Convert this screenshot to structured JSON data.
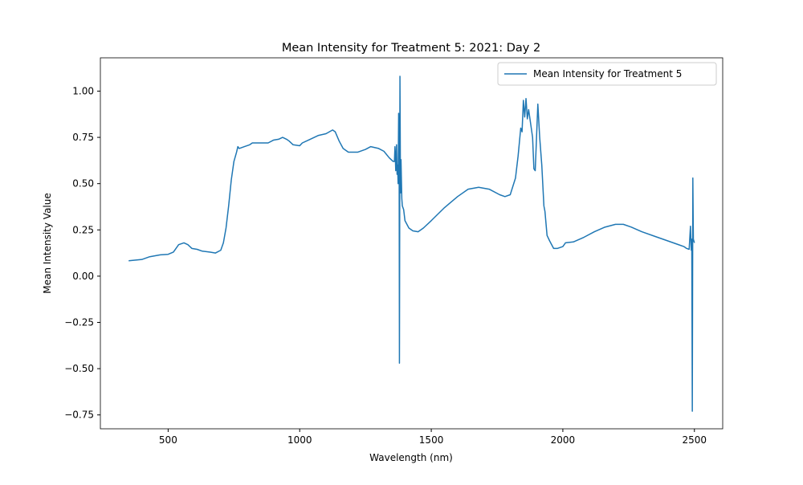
{
  "chart_data": {
    "type": "line",
    "title": "Mean Intensity for Treatment 5: 2021: Day 2",
    "x_label": "Wavelength (nm)",
    "y_label": "Mean Intensity Value",
    "legend": "upper right",
    "grid": false,
    "xlim": [
      242.5,
      2607.5
    ],
    "xticks": [
      500,
      1000,
      1500,
      2000,
      2500
    ],
    "ylim": [
      -0.825,
      1.18
    ],
    "yticks": [
      {
        "value": 1,
        "label": "1.00"
      },
      0.75,
      {
        "value": 0.5,
        "label": "0.50"
      },
      0.25,
      {
        "value": 0,
        "label": "0.00"
      },
      {
        "value": -0.25,
        "label": "−0.25"
      },
      {
        "value": -0.5,
        "label": "−0.50"
      },
      {
        "value": -0.75,
        "label": "−0.75"
      }
    ],
    "x": [
      350,
      400,
      430,
      470,
      500,
      520,
      540,
      560,
      575,
      590,
      610,
      630,
      660,
      680,
      700,
      710,
      720,
      730,
      740,
      750,
      760,
      765,
      770,
      790,
      810,
      820,
      850,
      880,
      900,
      920,
      935,
      950,
      960,
      975,
      1000,
      1010,
      1040,
      1070,
      1100,
      1125,
      1135,
      1150,
      1165,
      1185,
      1220,
      1250,
      1270,
      1300,
      1320,
      1340,
      1355,
      1360,
      1362,
      1365,
      1368,
      1370,
      1372,
      1374,
      1376,
      1378,
      1379,
      1381,
      1383,
      1385,
      1388,
      1390,
      1395,
      1400,
      1415,
      1430,
      1450,
      1470,
      1500,
      1550,
      1600,
      1640,
      1680,
      1720,
      1760,
      1780,
      1800,
      1820,
      1830,
      1840,
      1845,
      1850,
      1855,
      1860,
      1865,
      1870,
      1878,
      1885,
      1890,
      1895,
      1900,
      1905,
      1912,
      1920,
      1928,
      1932,
      1940,
      1950,
      1965,
      1980,
      2000,
      2010,
      2040,
      2080,
      2120,
      2160,
      2200,
      2230,
      2260,
      2300,
      2350,
      2400,
      2440,
      2460,
      2470,
      2480,
      2485,
      2488,
      2490,
      2492,
      2494,
      2496,
      2500
    ],
    "series": [
      {
        "name": "Mean Intensity for Treatment 5",
        "color": "#1f77b4",
        "values": [
          0.083,
          0.09,
          0.105,
          0.115,
          0.118,
          0.13,
          0.17,
          0.18,
          0.17,
          0.15,
          0.145,
          0.135,
          0.13,
          0.125,
          0.14,
          0.18,
          0.26,
          0.38,
          0.52,
          0.62,
          0.67,
          0.7,
          0.69,
          0.7,
          0.71,
          0.72,
          0.72,
          0.72,
          0.735,
          0.74,
          0.75,
          0.74,
          0.73,
          0.71,
          0.705,
          0.72,
          0.74,
          0.76,
          0.77,
          0.79,
          0.78,
          0.73,
          0.69,
          0.67,
          0.67,
          0.685,
          0.7,
          0.69,
          0.675,
          0.64,
          0.62,
          0.62,
          0.7,
          0.57,
          0.71,
          0.55,
          0.6,
          0.5,
          0.88,
          0.55,
          -0.47,
          1.08,
          0.45,
          0.63,
          0.42,
          0.38,
          0.36,
          0.3,
          0.26,
          0.245,
          0.24,
          0.26,
          0.3,
          0.37,
          0.43,
          0.47,
          0.48,
          0.47,
          0.44,
          0.43,
          0.44,
          0.53,
          0.65,
          0.8,
          0.78,
          0.95,
          0.86,
          0.96,
          0.85,
          0.9,
          0.82,
          0.75,
          0.58,
          0.57,
          0.75,
          0.93,
          0.75,
          0.6,
          0.38,
          0.35,
          0.22,
          0.19,
          0.15,
          0.15,
          0.16,
          0.18,
          0.185,
          0.21,
          0.24,
          0.265,
          0.28,
          0.28,
          0.265,
          0.24,
          0.215,
          0.19,
          0.17,
          0.16,
          0.15,
          0.145,
          0.27,
          0.14,
          0.2,
          -0.73,
          0.53,
          0.2,
          0.18
        ]
      }
    ]
  }
}
